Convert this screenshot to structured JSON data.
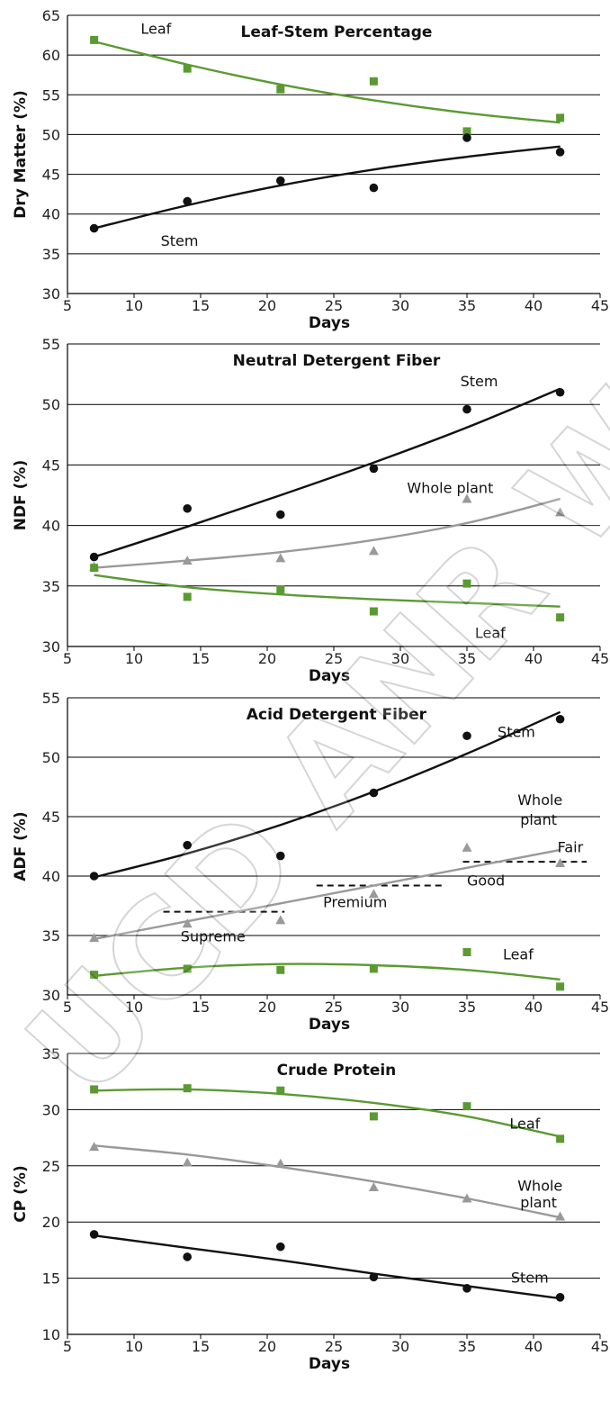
{
  "watermark": "UCD ANR Work",
  "colors": {
    "leaf": "#5b9a32",
    "stem": "#111111",
    "whole": "#999999",
    "grid": "#000000",
    "dashed": "#111111"
  },
  "chart_data": [
    {
      "type": "scatter",
      "title": "Leaf-Stem Percentage",
      "xlabel": "Days",
      "ylabel": "Dry Matter (%)",
      "xlim": [
        5,
        45
      ],
      "ylim": [
        30,
        65
      ],
      "xticks": [
        5,
        10,
        15,
        20,
        25,
        30,
        35,
        40,
        45
      ],
      "yticks": [
        30,
        35,
        40,
        45,
        50,
        55,
        60,
        65
      ],
      "series": [
        {
          "name": "Leaf",
          "color": "#5b9a32",
          "marker": "square",
          "x": [
            7,
            14,
            21,
            28,
            35,
            42
          ],
          "y": [
            61.9,
            58.3,
            55.7,
            56.7,
            50.4,
            52.1
          ],
          "trend_x": [
            7,
            14,
            21,
            28,
            35,
            42
          ],
          "trend_y": [
            61.7,
            58.8,
            56.3,
            54.3,
            52.7,
            51.5
          ]
        },
        {
          "name": "Stem",
          "color": "#111111",
          "marker": "circle",
          "x": [
            7,
            14,
            21,
            28,
            35,
            42
          ],
          "y": [
            38.2,
            41.6,
            44.2,
            43.3,
            49.6,
            47.8
          ],
          "trend_x": [
            7,
            14,
            21,
            28,
            35,
            42
          ],
          "trend_y": [
            38.2,
            41.1,
            43.6,
            45.6,
            47.2,
            48.5
          ]
        }
      ],
      "annotations": [
        {
          "text": "Leaf",
          "x": 10.5,
          "y": 62.7
        },
        {
          "text": "Stem",
          "x": 12,
          "y": 36
        }
      ]
    },
    {
      "type": "scatter",
      "title": "Neutral Detergent Fiber",
      "xlabel": "Days",
      "ylabel": "NDF (%)",
      "xlim": [
        5,
        45
      ],
      "ylim": [
        30,
        55
      ],
      "xticks": [
        5,
        10,
        15,
        20,
        25,
        30,
        35,
        40,
        45
      ],
      "yticks": [
        30,
        35,
        40,
        45,
        50,
        55
      ],
      "series": [
        {
          "name": "Stem",
          "color": "#111111",
          "marker": "circle",
          "x": [
            7,
            14,
            21,
            28,
            35,
            42
          ],
          "y": [
            37.4,
            41.4,
            40.9,
            44.7,
            49.6,
            51.0
          ],
          "trend_x": [
            7,
            14,
            21,
            28,
            35,
            42
          ],
          "trend_y": [
            37.4,
            39.9,
            42.5,
            45.2,
            48.1,
            51.3
          ]
        },
        {
          "name": "Whole plant",
          "color": "#999999",
          "marker": "triangle",
          "x": [
            7,
            14,
            21,
            28,
            35,
            42
          ],
          "y": [
            36.6,
            37.1,
            37.3,
            37.9,
            42.2,
            41.1
          ],
          "trend_x": [
            7,
            14,
            21,
            28,
            35,
            42
          ],
          "trend_y": [
            36.5,
            37.1,
            37.8,
            38.8,
            40.2,
            42.2
          ]
        },
        {
          "name": "Leaf",
          "color": "#5b9a32",
          "marker": "square",
          "x": [
            7,
            14,
            21,
            28,
            35,
            42
          ],
          "y": [
            36.5,
            34.1,
            34.7,
            32.9,
            35.2,
            32.4
          ],
          "trend_x": [
            7,
            14,
            21,
            28,
            35,
            42
          ],
          "trend_y": [
            35.9,
            34.9,
            34.3,
            33.9,
            33.6,
            33.3
          ]
        }
      ],
      "annotations": [
        {
          "text": "Stem",
          "x": 34.5,
          "y": 51.5
        },
        {
          "text": "Whole plant",
          "x": 30.5,
          "y": 42.7
        },
        {
          "text": "Leaf",
          "x": 35.6,
          "y": 30.7
        }
      ]
    },
    {
      "type": "scatter",
      "title": "Acid Detergent Fiber",
      "xlabel": "Days",
      "ylabel": "ADF (%)",
      "xlim": [
        5,
        45
      ],
      "ylim": [
        30,
        55
      ],
      "xticks": [
        5,
        10,
        15,
        20,
        25,
        30,
        35,
        40,
        45
      ],
      "yticks": [
        30,
        35,
        40,
        45,
        50,
        55
      ],
      "series": [
        {
          "name": "Stem",
          "color": "#111111",
          "marker": "circle",
          "x": [
            7,
            14,
            21,
            28,
            35,
            42
          ],
          "y": [
            40.0,
            42.6,
            41.7,
            47.0,
            51.8,
            53.2
          ],
          "trend_x": [
            7,
            14,
            21,
            28,
            35,
            42
          ],
          "trend_y": [
            39.9,
            41.9,
            44.3,
            47.1,
            50.3,
            53.8
          ]
        },
        {
          "name": "Whole plant",
          "color": "#999999",
          "marker": "triangle",
          "x": [
            7,
            14,
            21,
            28,
            35,
            42
          ],
          "y": [
            34.8,
            36.0,
            36.3,
            38.5,
            42.4,
            41.1
          ],
          "trend_x": [
            7,
            14,
            21,
            28,
            35,
            42
          ],
          "trend_y": [
            34.7,
            36.2,
            37.7,
            39.2,
            40.7,
            42.2
          ]
        },
        {
          "name": "Leaf",
          "color": "#5b9a32",
          "marker": "square",
          "x": [
            7,
            14,
            21,
            28,
            35,
            42
          ],
          "y": [
            31.7,
            32.2,
            32.1,
            32.2,
            33.6,
            30.7
          ],
          "trend_x": [
            7,
            14,
            21,
            28,
            35,
            42
          ],
          "trend_y": [
            31.6,
            32.3,
            32.6,
            32.5,
            32.1,
            31.3
          ]
        }
      ],
      "thresholds": [
        {
          "label": "Supreme",
          "value": 37.0,
          "x_from": 12.2,
          "x_to": 21.3
        },
        {
          "label": "Premium",
          "value": 39.2,
          "x_from": 23.7,
          "x_to": 33.2
        },
        {
          "label": "Good",
          "value": 41.2,
          "x_from": 34.7,
          "x_to": 44.0
        }
      ],
      "annotations": [
        {
          "text": "Stem",
          "x": 37.3,
          "y": 51.7
        },
        {
          "text": "Whole",
          "x": 38.8,
          "y": 46.0
        },
        {
          "text": "plant",
          "x": 39.0,
          "y": 44.3
        },
        {
          "text": "Fair",
          "x": 41.8,
          "y": 42.0
        },
        {
          "text": "Good",
          "x": 35.0,
          "y": 39.2
        },
        {
          "text": "Premium",
          "x": 24.2,
          "y": 37.4
        },
        {
          "text": "Supreme",
          "x": 13.5,
          "y": 34.5
        },
        {
          "text": "Leaf",
          "x": 37.7,
          "y": 33.0
        }
      ]
    },
    {
      "type": "scatter",
      "title": "Crude Protein",
      "xlabel": "Days",
      "ylabel": "CP (%)",
      "xlim": [
        5,
        45
      ],
      "ylim": [
        10,
        35
      ],
      "xticks": [
        5,
        10,
        15,
        20,
        25,
        30,
        35,
        40,
        45
      ],
      "yticks": [
        10,
        15,
        20,
        25,
        30,
        35
      ],
      "series": [
        {
          "name": "Leaf",
          "color": "#5b9a32",
          "marker": "square",
          "x": [
            7,
            14,
            21,
            28,
            35,
            42
          ],
          "y": [
            31.8,
            31.9,
            31.7,
            29.4,
            30.3,
            27.4
          ],
          "trend_x": [
            7,
            14,
            21,
            28,
            35,
            42
          ],
          "trend_y": [
            31.7,
            31.8,
            31.4,
            30.6,
            29.4,
            27.6
          ]
        },
        {
          "name": "Whole plant",
          "color": "#999999",
          "marker": "triangle",
          "x": [
            7,
            14,
            21,
            28,
            35,
            42
          ],
          "y": [
            26.7,
            25.3,
            25.2,
            23.1,
            22.1,
            20.5
          ],
          "trend_x": [
            7,
            14,
            21,
            28,
            35,
            42
          ],
          "trend_y": [
            26.8,
            26.0,
            24.9,
            23.6,
            22.1,
            20.4
          ]
        },
        {
          "name": "Stem",
          "color": "#111111",
          "marker": "circle",
          "x": [
            7,
            14,
            21,
            28,
            35,
            42
          ],
          "y": [
            18.9,
            16.9,
            17.8,
            15.1,
            14.1,
            13.3
          ],
          "trend_x": [
            7,
            14,
            21,
            28,
            35,
            42
          ],
          "trend_y": [
            18.8,
            17.7,
            16.6,
            15.4,
            14.3,
            13.2
          ]
        }
      ],
      "annotations": [
        {
          "text": "Leaf",
          "x": 38.2,
          "y": 28.3
        },
        {
          "text": "Whole",
          "x": 38.8,
          "y": 22.8
        },
        {
          "text": "plant",
          "x": 39.0,
          "y": 21.3
        },
        {
          "text": "Stem",
          "x": 38.3,
          "y": 14.6
        }
      ]
    }
  ]
}
